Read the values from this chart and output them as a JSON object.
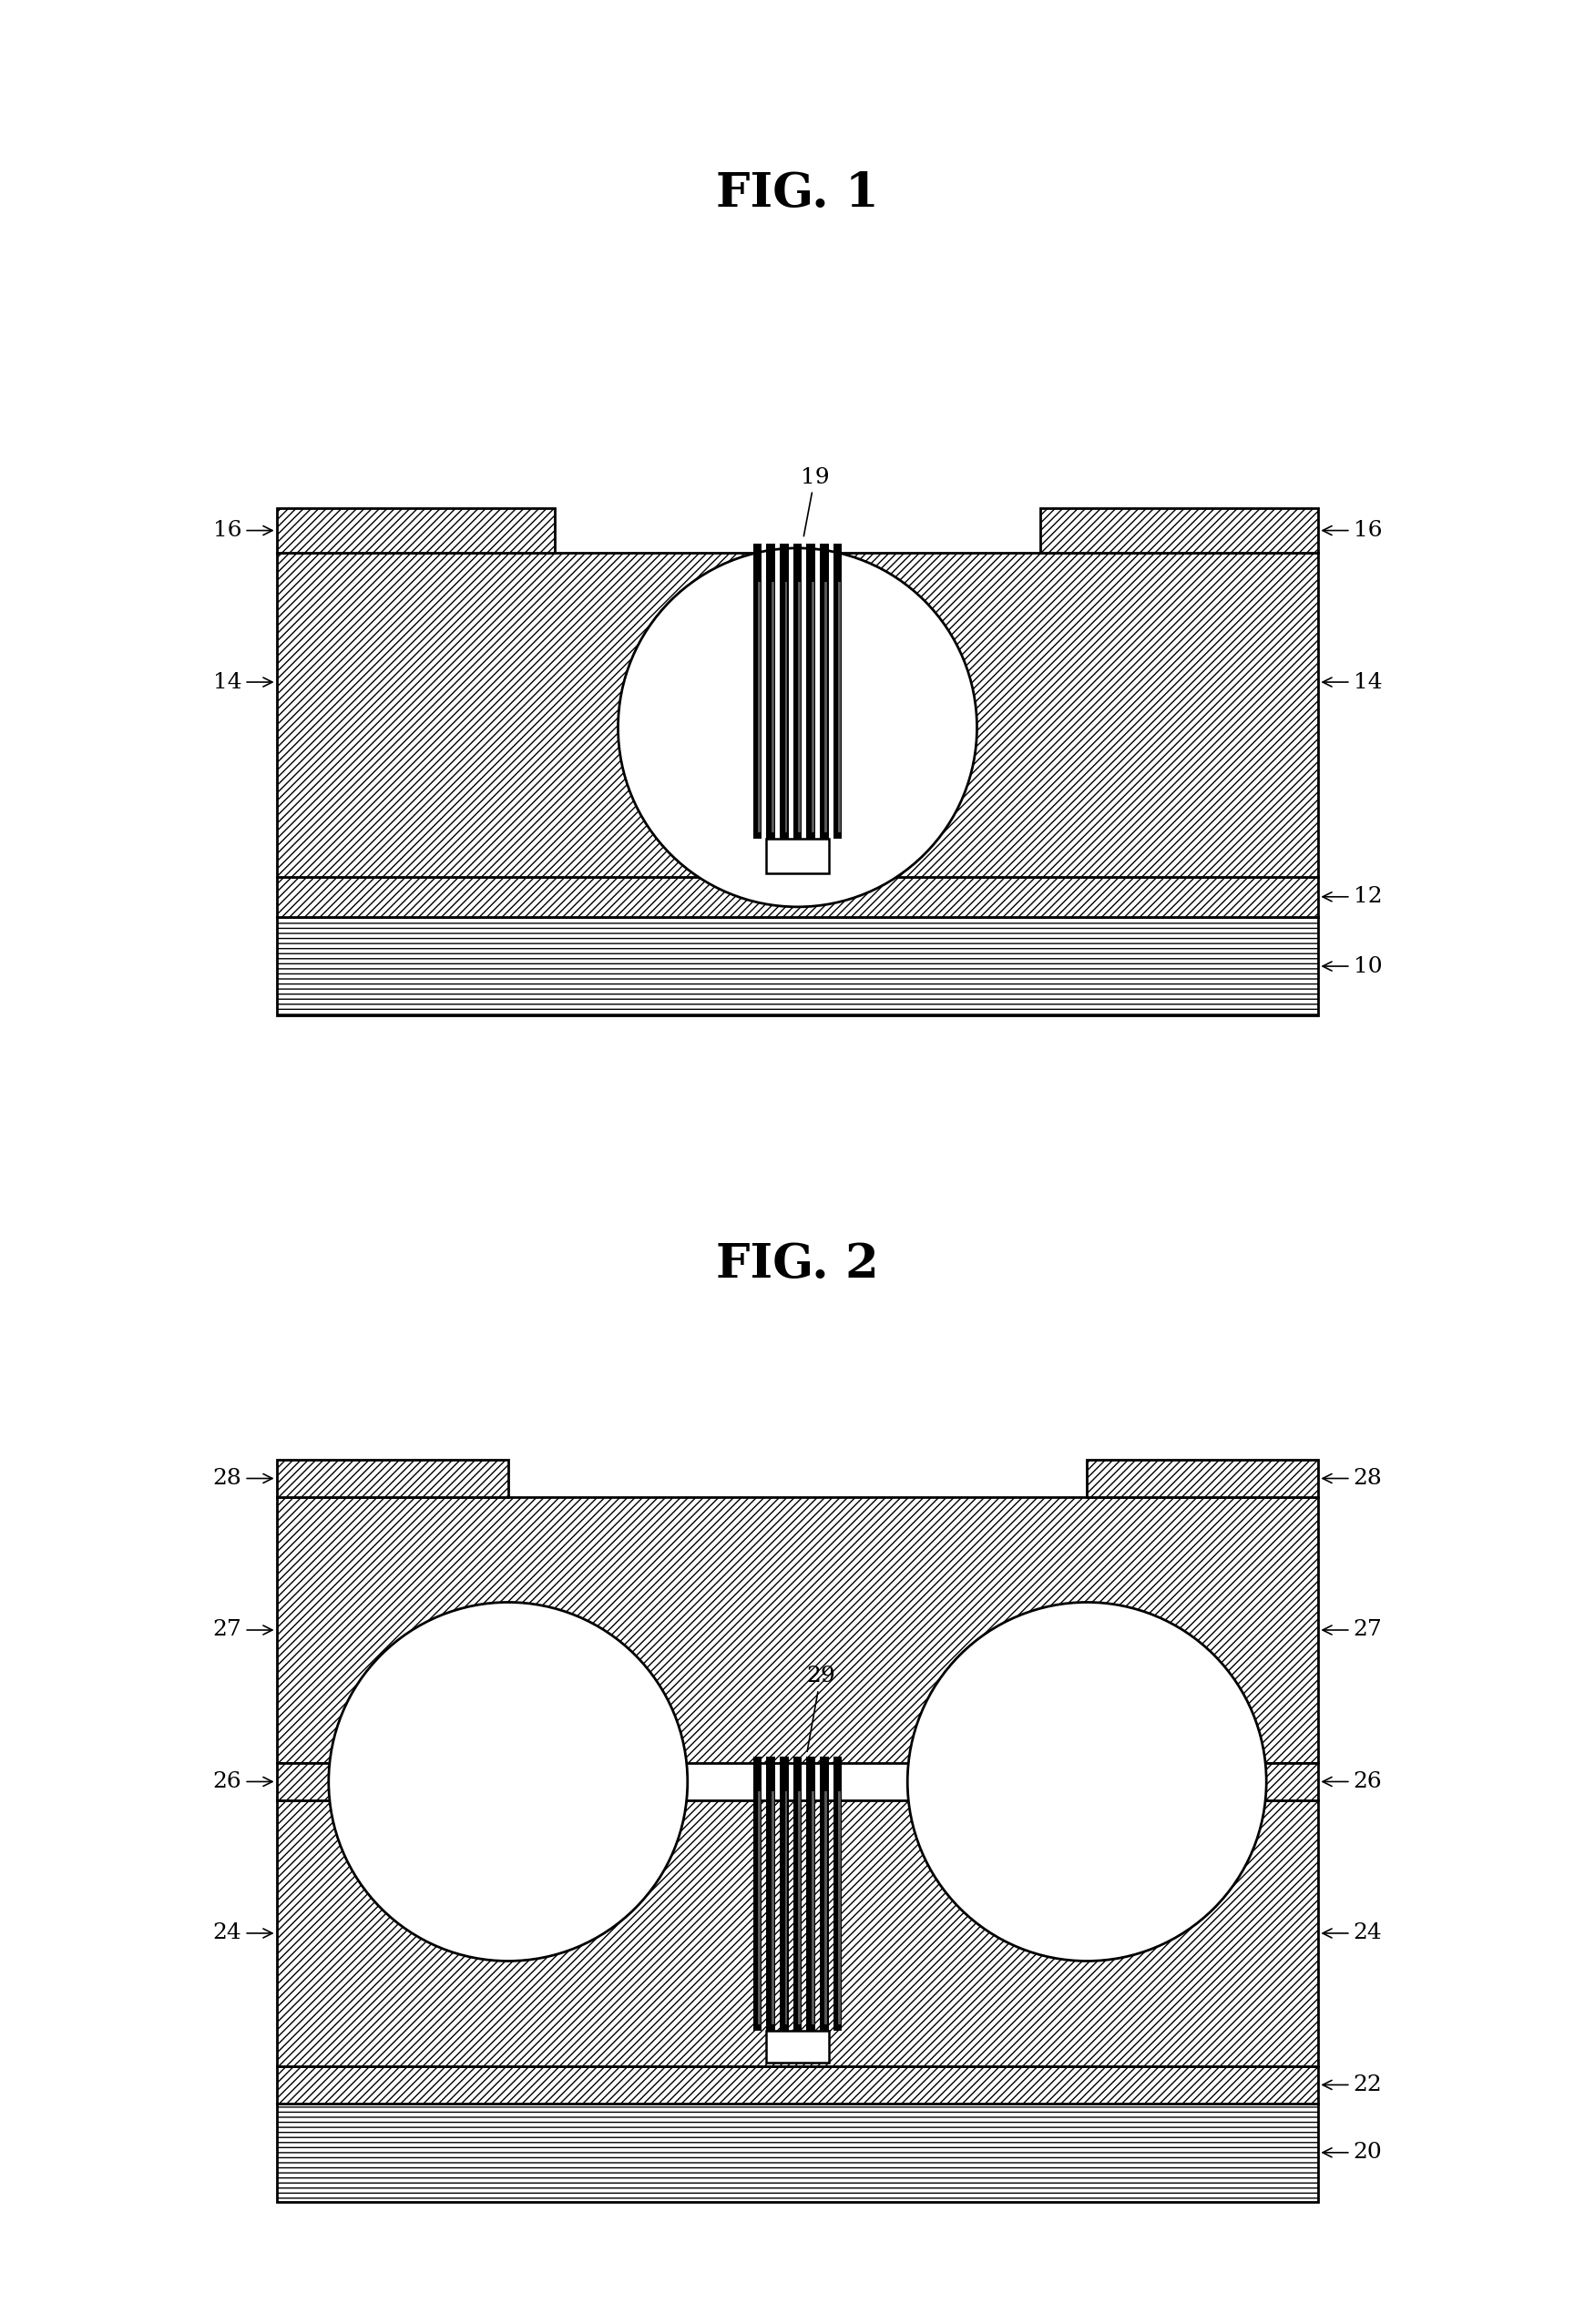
{
  "fig1_title": "FIG. 1",
  "fig2_title": "FIG. 2",
  "background_color": "#ffffff",
  "label_fontsize": 18,
  "title_fontsize": 38,
  "hatch_dense": "////",
  "hatch_loose": "---"
}
